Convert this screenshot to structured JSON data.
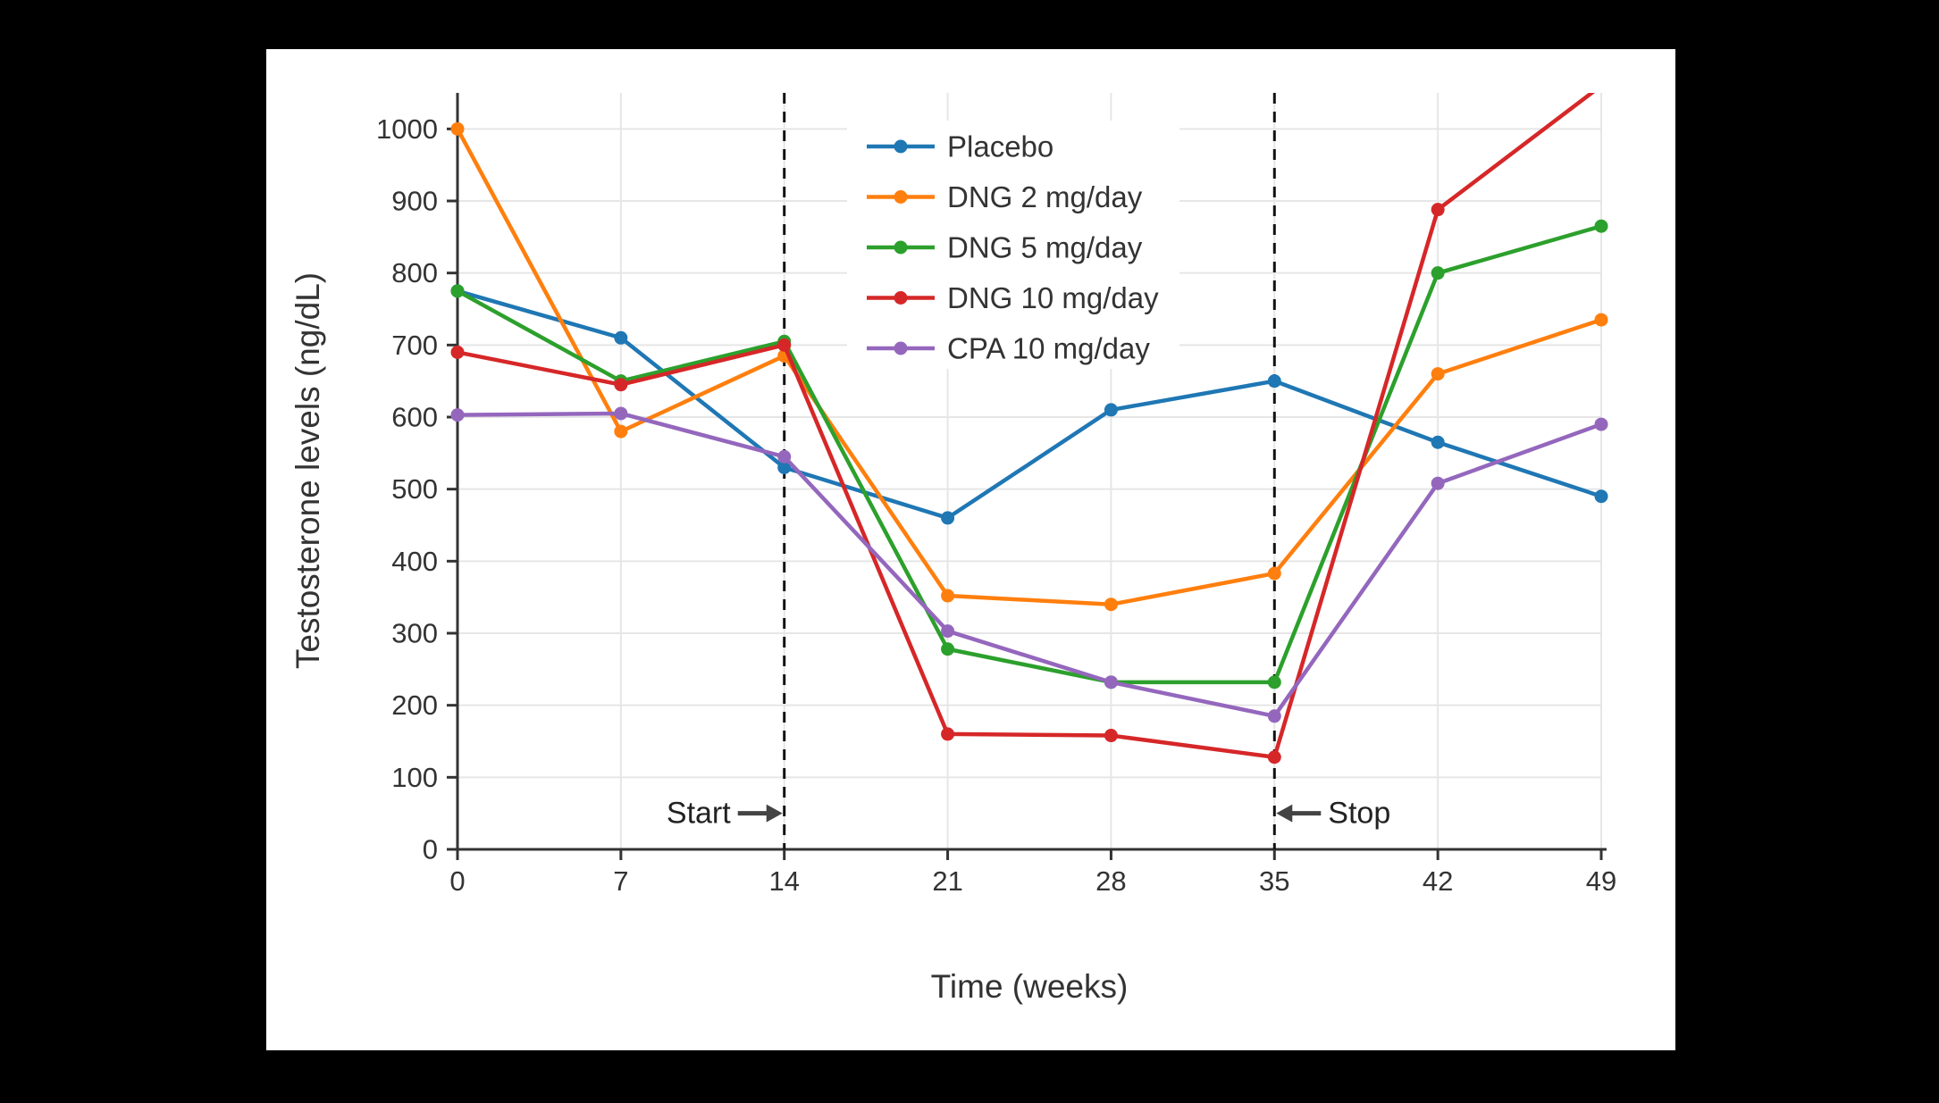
{
  "page": {
    "background_color": "#000000",
    "panel_color": "#ffffff"
  },
  "chart_data": {
    "type": "line",
    "title": "",
    "xlabel": "Time (weeks)",
    "ylabel": "Testosterone levels (ng/dL)",
    "x": [
      0,
      7,
      14,
      21,
      28,
      35,
      42,
      49
    ],
    "xlim": [
      0,
      49
    ],
    "ylim": [
      0,
      1050
    ],
    "yticks": [
      0,
      100,
      200,
      300,
      400,
      500,
      600,
      700,
      800,
      900,
      1000
    ],
    "grid": true,
    "legend_position": "top-center-inside",
    "colors": {
      "grid": "#e6e6e6",
      "axis": "#333333",
      "vline": "#111111",
      "annotation": "#444444"
    },
    "series": [
      {
        "name": "Placebo",
        "color": "#1f77b4",
        "values": [
          775,
          710,
          530,
          460,
          610,
          650,
          565,
          490
        ]
      },
      {
        "name": "DNG 2 mg/day",
        "color": "#ff7f0e",
        "values": [
          1000,
          580,
          685,
          352,
          340,
          383,
          660,
          735
        ]
      },
      {
        "name": "DNG 5 mg/day",
        "color": "#2ca02c",
        "values": [
          775,
          650,
          705,
          278,
          232,
          232,
          800,
          865
        ]
      },
      {
        "name": "DNG 10 mg/day",
        "color": "#d62728",
        "values": [
          690,
          645,
          700,
          160,
          158,
          128,
          888,
          1060
        ]
      },
      {
        "name": "CPA 10 mg/day",
        "color": "#9467bd",
        "values": [
          603,
          605,
          545,
          303,
          232,
          185,
          508,
          590
        ]
      }
    ],
    "vlines": [
      {
        "week": 14,
        "style": "dashed"
      },
      {
        "week": 35,
        "style": "dashed"
      }
    ],
    "annotations": [
      {
        "text": "Start",
        "week": 14,
        "value": 50,
        "side": "left"
      },
      {
        "text": "Stop",
        "week": 35,
        "value": 50,
        "side": "right"
      }
    ]
  }
}
